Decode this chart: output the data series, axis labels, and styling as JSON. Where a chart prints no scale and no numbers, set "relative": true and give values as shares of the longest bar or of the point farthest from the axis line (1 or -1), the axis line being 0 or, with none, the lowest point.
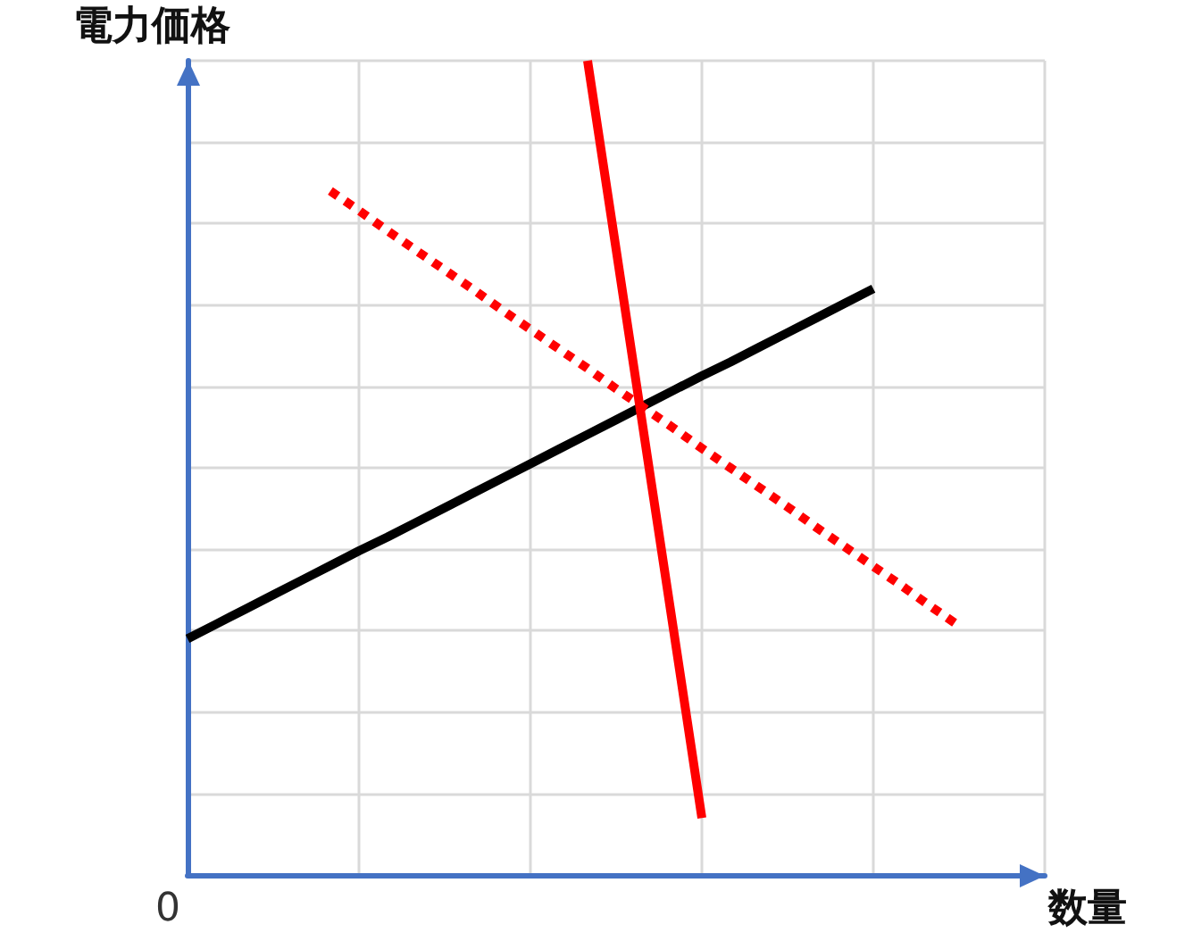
{
  "chart_data": {
    "type": "line",
    "relative": true,
    "xlabel": "数量",
    "ylabel": "電力価格",
    "annotations": [
      "0"
    ],
    "grid": true,
    "marker": "none",
    "categories": [
      null,
      null,
      null,
      null,
      null,
      null,
      null,
      null,
      null,
      null,
      null,
      null,
      null,
      null,
      null,
      null,
      null,
      null,
      null,
      null,
      null,
      null,
      null,
      null,
      null,
      null,
      null,
      null,
      null,
      null,
      null
    ],
    "series": [
      {
        "color": "#000000",
        "line_style": "solid",
        "values": [
          0.29,
          0.308,
          0.326,
          0.344,
          0.362,
          0.38,
          0.398,
          0.415,
          0.433,
          0.451,
          0.469,
          0.487,
          0.505,
          0.523,
          0.541,
          0.559,
          0.577,
          0.595,
          0.613,
          0.63,
          0.648,
          0.666,
          0.684,
          0.702,
          0.72,
          null,
          null,
          null,
          null,
          null,
          null
        ]
      },
      {
        "color": "#ff0000",
        "line_style": "solid",
        "values": [
          null,
          null,
          null,
          null,
          null,
          null,
          null,
          null,
          null,
          null,
          null,
          null,
          null,
          null,
          1,
          0.768,
          0.535,
          0.303,
          0.07,
          null,
          null,
          null,
          null,
          null,
          null,
          null,
          null,
          null,
          null,
          null,
          null
        ]
      },
      {
        "color": "#ff0000",
        "line_style": "dotted",
        "values": [
          null,
          null,
          null,
          null,
          null,
          0.84,
          0.816,
          0.791,
          0.767,
          0.743,
          0.719,
          0.694,
          0.67,
          0.646,
          0.622,
          0.597,
          0.573,
          0.549,
          0.524,
          0.5,
          0.476,
          0.452,
          0.427,
          0.403,
          0.379,
          0.355,
          0.33,
          0.306,
          null,
          null,
          null
        ]
      }
    ]
  }
}
